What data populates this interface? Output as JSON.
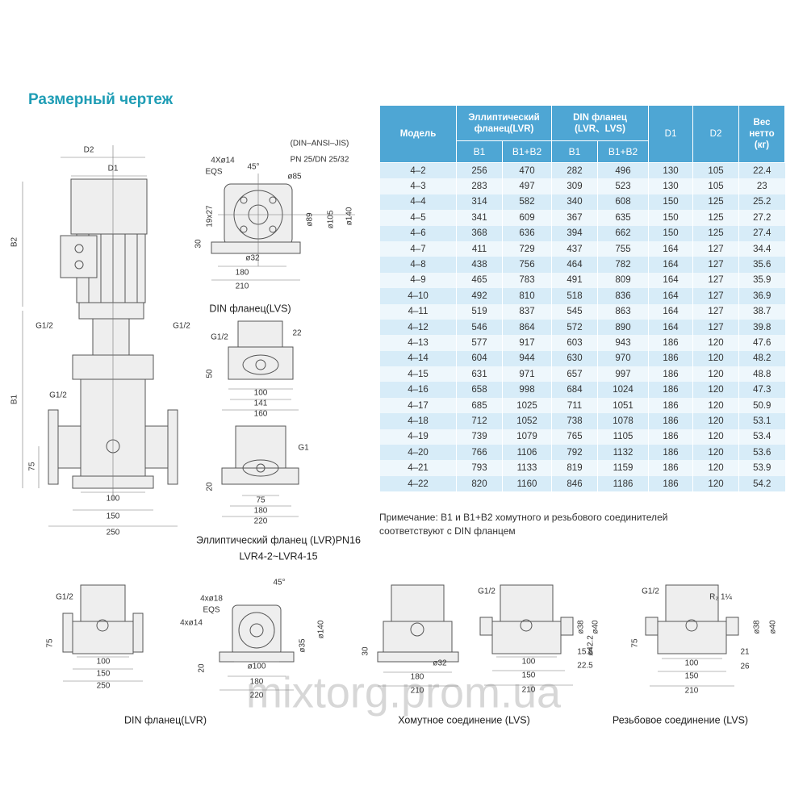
{
  "header": {
    "title": "Размерный чертеж"
  },
  "table": {
    "header": {
      "model": "Модель",
      "ellip": [
        "Эллиптический",
        "фланец(LVR)"
      ],
      "din": [
        "DIN фланец",
        "(LVR、LVS)"
      ],
      "d1": "D1",
      "d2": "D2",
      "weight": [
        "Вес",
        "нетто",
        "(кг)"
      ],
      "sub": [
        "B1",
        "B1+B2",
        "B1",
        "B1+B2"
      ]
    },
    "rows": [
      [
        "4–2",
        256,
        470,
        282,
        496,
        130,
        105,
        22.4
      ],
      [
        "4–3",
        283,
        497,
        309,
        523,
        130,
        105,
        23
      ],
      [
        "4–4",
        314,
        582,
        340,
        608,
        150,
        125,
        25.2
      ],
      [
        "4–5",
        341,
        609,
        367,
        635,
        150,
        125,
        27.2
      ],
      [
        "4–6",
        368,
        636,
        394,
        662,
        150,
        125,
        27.4
      ],
      [
        "4–7",
        411,
        729,
        437,
        755,
        164,
        127,
        34.4
      ],
      [
        "4–8",
        438,
        756,
        464,
        782,
        164,
        127,
        35.6
      ],
      [
        "4–9",
        465,
        783,
        491,
        809,
        164,
        127,
        35.9
      ],
      [
        "4–10",
        492,
        810,
        518,
        836,
        164,
        127,
        36.9
      ],
      [
        "4–11",
        519,
        837,
        545,
        863,
        164,
        127,
        38.7
      ],
      [
        "4–12",
        546,
        864,
        572,
        890,
        164,
        127,
        39.8
      ],
      [
        "4–13",
        577,
        917,
        603,
        943,
        186,
        120,
        47.6
      ],
      [
        "4–14",
        604,
        944,
        630,
        970,
        186,
        120,
        48.2
      ],
      [
        "4–15",
        631,
        971,
        657,
        997,
        186,
        120,
        48.8
      ],
      [
        "4–16",
        658,
        998,
        684,
        1024,
        186,
        120,
        47.3
      ],
      [
        "4–17",
        685,
        1025,
        711,
        1051,
        186,
        120,
        50.9
      ],
      [
        "4–18",
        712,
        1052,
        738,
        1078,
        186,
        120,
        53.1
      ],
      [
        "4–19",
        739,
        1079,
        765,
        1105,
        186,
        120,
        53.4
      ],
      [
        "4–20",
        766,
        1106,
        792,
        1132,
        186,
        120,
        53.6
      ],
      [
        "4–21",
        793,
        1133,
        819,
        1159,
        186,
        120,
        53.9
      ],
      [
        "4–22",
        820,
        1160,
        846,
        1186,
        186,
        120,
        54.2
      ]
    ]
  },
  "note": [
    "Примечание: B1 и B1+B2 хомутного и резьбового соединителей",
    "соответствуют с DIN фланцем"
  ],
  "drawings": {
    "main": {
      "labels": [
        "D2",
        "D1",
        "B2",
        "B1",
        "G1/2",
        "G1/2",
        "G1/2",
        "75",
        "100",
        "150",
        "250"
      ]
    },
    "flange": {
      "labels": [
        "(DIN–ANSI–JIS)",
        "PN 25/DN 25/32",
        "4Xø14",
        "EQS",
        "45°",
        "ø85",
        "19x27",
        "ø89",
        "ø105",
        "ø140",
        "30",
        "ø32",
        "180",
        "210"
      ],
      "caption": [
        "DIN фланец(LVS)"
      ]
    },
    "ellip": {
      "labels": [
        "G1/2",
        "22",
        "50",
        "100",
        "141",
        "160",
        "G1",
        "20",
        "75",
        "180",
        "220"
      ],
      "caption": [
        "Эллиптический фланец (LVR)PN16",
        "LVR4-2~LVR4-15"
      ]
    },
    "dinlvr": {
      "labels": [
        "G1/2",
        "75",
        "100",
        "150",
        "250"
      ],
      "caption": [
        "DIN фланец(LVR)"
      ]
    },
    "dinflange": {
      "labels": [
        "4xø18",
        "EQS",
        "45°",
        "4xø14",
        "ø140",
        "ø35",
        "20",
        "ø100",
        "180",
        "220"
      ]
    },
    "clamp": {
      "labels": [
        "30",
        "ø32",
        "180",
        "210",
        "G1/2",
        "ø38",
        "ø40",
        "ø42.2",
        "15.5",
        "22.5",
        "100",
        "150",
        "210"
      ],
      "caption": [
        "Хомутное соединение (LVS)"
      ]
    },
    "threaded": {
      "labels": [
        "G1/2",
        "R₂ 1¼",
        "ø38",
        "ø40",
        "75",
        "21",
        "26",
        "100",
        "150",
        "210"
      ],
      "caption": [
        "Резьбовое соединение (LVS)"
      ]
    }
  },
  "watermark": "mixtorg.prom.ua"
}
